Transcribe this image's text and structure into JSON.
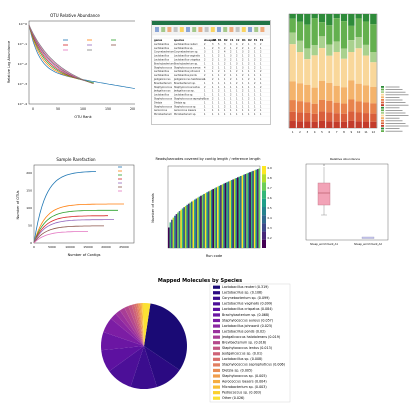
{
  "panels": {
    "otu": {
      "title": "OTU Relative Abundance",
      "xlabel": "OTU Rank",
      "ylabel": "Relative Log Abundance"
    },
    "rarefaction": {
      "title": "Sample Rarefaction",
      "xlabel": "Number of Contigs",
      "ylabel": "Number of OTUs"
    },
    "readlength": {
      "title": "Reads/barcodes covered by contig length / reference length",
      "xlabel": "Run code",
      "ylabel": "Number of reads"
    },
    "boxplot": {
      "title": "Relative Abundance",
      "cat1": "Sheep_enrichment_A1",
      "cat2": "Sheep_enrichment_A2"
    },
    "pie": {
      "title": "Mapped Molecules by Species"
    }
  },
  "chart_data": [
    {
      "type": "line",
      "title": "OTU Relative Abundance",
      "xlabel": "OTU Rank",
      "ylabel": "Relative Log Abundance",
      "x_ticks": [
        "0",
        "50",
        "100",
        "150",
        "200"
      ],
      "y_ticks": [
        "10^0",
        "10^-1",
        "10^-2",
        "10^-3",
        "10^-4"
      ],
      "series_count": 8,
      "series_colors": [
        "#1f77b4",
        "#ff7f0e",
        "#2ca02c",
        "#d62728",
        "#9467bd",
        "#8c564b",
        "#e377c2",
        "#7f7f7f"
      ]
    },
    {
      "type": "line",
      "title": "Sample Rarefaction",
      "xlabel": "Number of Contigs",
      "ylabel": "Number of OTUs",
      "x_ticks": [
        "0",
        "5000",
        "10000",
        "15000",
        "20000",
        "25000"
      ],
      "y_ticks": [
        "0",
        "50",
        "100",
        "150",
        "200"
      ],
      "series_count": 7,
      "series_colors": [
        "#1f77b4",
        "#ff7f0e",
        "#2ca02c",
        "#d62728",
        "#9467bd",
        "#8c564b",
        "#e377c2"
      ]
    },
    {
      "type": "bar",
      "title": "Reads/barcodes covered by contig length / reference length",
      "xlabel": "Run code",
      "ylabel": "Number of reads",
      "colormap": "viridis",
      "colorbar_ticks": [
        "0.9",
        "0.8",
        "0.7",
        "0.6",
        "0.5",
        "0.4",
        "0.3",
        "0.2"
      ]
    },
    {
      "type": "bar",
      "title": "",
      "stacked": true,
      "categories": [
        "1",
        "2",
        "3",
        "4",
        "5",
        "6",
        "7",
        "8",
        "9",
        "10",
        "11",
        "12"
      ],
      "series_colors": [
        "#2e8b3a",
        "#64b04f",
        "#a9d18e",
        "#f9d79a",
        "#f4b36b",
        "#e8834c",
        "#d95f3b",
        "#c33b2b"
      ]
    },
    {
      "type": "bar",
      "title": "Relative Abundance",
      "categories": [
        "Sheep_enrichment_A1",
        "Sheep_enrichment_A2"
      ]
    },
    {
      "type": "pie",
      "title": "Mapped Molecules by Species",
      "labels": [
        "Lactobacillus reuteri (0.319)",
        "Lactobacillus sp. (0.106)",
        "Corynebacterium sp. (0.099)",
        "Lactobacillus vaginalis (0.099)",
        "Lactobacillus crispatus (0.084)",
        "Brachybacterium sp. (0.068)",
        "Staphylococcus aureus (0.057)",
        "Lactobacillus johnsonii (0.025)",
        "Lactobacillus ponds (0.02)",
        "Jeotgalicoccus halotolerans (0.019)",
        "Brevibacterium sp. (0.016)",
        "Staphylococcus lentus (0.013)",
        "Jeotgalicoccus sp. (0.01)",
        "Lactobacillus sp. (0.008)",
        "Staphylococcus saprophyticus (0.006)",
        "Dietzia sp. (0.005)",
        "Staphylococcus sp. (0.005)",
        "Aerococcus loeasrs (0.004)",
        "Microbacterium sp. (0.003)",
        "Pediococcus sp. (0.003)",
        "Other (0.026)"
      ],
      "values": [
        0.319,
        0.106,
        0.099,
        0.099,
        0.084,
        0.068,
        0.057,
        0.025,
        0.02,
        0.019,
        0.016,
        0.013,
        0.01,
        0.008,
        0.006,
        0.005,
        0.005,
        0.004,
        0.003,
        0.003,
        0.026
      ],
      "colors": [
        "#1a0a75",
        "#2b0a82",
        "#3b0d8e",
        "#4c0f98",
        "#5d11a0",
        "#6b16a3",
        "#7c1da4",
        "#8b26a2",
        "#9a319d",
        "#a83d96",
        "#b5498c",
        "#c25682",
        "#ce6377",
        "#d8716c",
        "#e17f61",
        "#e98e55",
        "#f09d4b",
        "#f5ad40",
        "#f9bf35",
        "#fbd02e",
        "#fbe133"
      ]
    }
  ],
  "spreadsheet": {
    "headers": [
      "genus",
      "species",
      "sheep.A1",
      "A2",
      "B1",
      "B2",
      "C1",
      "C2",
      "D1",
      "D2",
      "E1",
      "E2"
    ],
    "rows": [
      [
        "Lactobacillus",
        "Lactobacillus reuteri",
        "2",
        "3",
        "5",
        "3",
        "4",
        "4",
        "2",
        "1",
        "3",
        "2"
      ],
      [
        "Lactobacillus",
        "Lactobacillus sp.",
        "1",
        "2",
        "3",
        "2",
        "1",
        "2",
        "2",
        "1",
        "2",
        "1"
      ],
      [
        "Corynebacterium",
        "Corynebacterium sp.",
        "3",
        "1",
        "2",
        "4",
        "2",
        "1",
        "3",
        "2",
        "1",
        "2"
      ],
      [
        "Lactobacillus",
        "Lactobacillus vaginalis",
        "1",
        "1",
        "2",
        "1",
        "3",
        "2",
        "1",
        "2",
        "1",
        "1"
      ],
      [
        "Lactobacillus",
        "Lactobacillus crispatus",
        "2",
        "2",
        "1",
        "3",
        "2",
        "1",
        "2",
        "1",
        "2",
        "2"
      ],
      [
        "Brachybacterium",
        "Brachybacterium sp.",
        "1",
        "1",
        "1",
        "2",
        "1",
        "3",
        "1",
        "2",
        "1",
        "1"
      ],
      [
        "Staphylococcus",
        "Staphylococcus aureus",
        "4",
        "2",
        "1",
        "1",
        "2",
        "1",
        "3",
        "1",
        "2",
        "1"
      ],
      [
        "Lactobacillus",
        "Lactobacillus johnsonii",
        "1",
        "1",
        "2",
        "1",
        "1",
        "2",
        "1",
        "1",
        "1",
        "2"
      ],
      [
        "Lactobacillus",
        "Lactobacillus ponds",
        "2",
        "1",
        "1",
        "2",
        "1",
        "1",
        "2",
        "1",
        "1",
        "1"
      ],
      [
        "Jeotgalicoccus",
        "Jeotgalicoccus halotolerans",
        "1",
        "2",
        "1",
        "1",
        "2",
        "1",
        "1",
        "2",
        "1",
        "1"
      ],
      [
        "Brevibacterium",
        "Brevibacterium sp.",
        "1",
        "1",
        "1",
        "1",
        "1",
        "2",
        "1",
        "1",
        "2",
        "1"
      ],
      [
        "Staphylococcus",
        "Staphylococcus lentus",
        "2",
        "1",
        "1",
        "1",
        "1",
        "1",
        "1",
        "1",
        "1",
        "2"
      ],
      [
        "Jeotgalicoccus",
        "Jeotgalicoccus sp.",
        "1",
        "1",
        "2",
        "1",
        "1",
        "1",
        "2",
        "1",
        "1",
        "1"
      ],
      [
        "Lactobacillus",
        "Lactobacillus sp.",
        "1",
        "1",
        "1",
        "1",
        "2",
        "1",
        "1",
        "1",
        "1",
        "1"
      ],
      [
        "Staphylococcus",
        "Staphylococcus saprophyticus",
        "1",
        "2",
        "1",
        "1",
        "1",
        "1",
        "1",
        "2",
        "1",
        "1"
      ],
      [
        "Dietzia",
        "Dietzia sp.",
        "1",
        "1",
        "1",
        "1",
        "1",
        "1",
        "1",
        "1",
        "1",
        "1"
      ],
      [
        "Staphylococcus",
        "Staphylococcus sp.",
        "1",
        "1",
        "1",
        "2",
        "1",
        "1",
        "1",
        "1",
        "1",
        "1"
      ],
      [
        "Aerococcus",
        "Aerococcus loeasrs",
        "1",
        "1",
        "1",
        "1",
        "1",
        "1",
        "1",
        "1",
        "2",
        "1"
      ],
      [
        "Microbacterium",
        "Microbacterium sp.",
        "1",
        "1",
        "1",
        "1",
        "1",
        "1",
        "1",
        "1",
        "1",
        "1"
      ]
    ]
  }
}
